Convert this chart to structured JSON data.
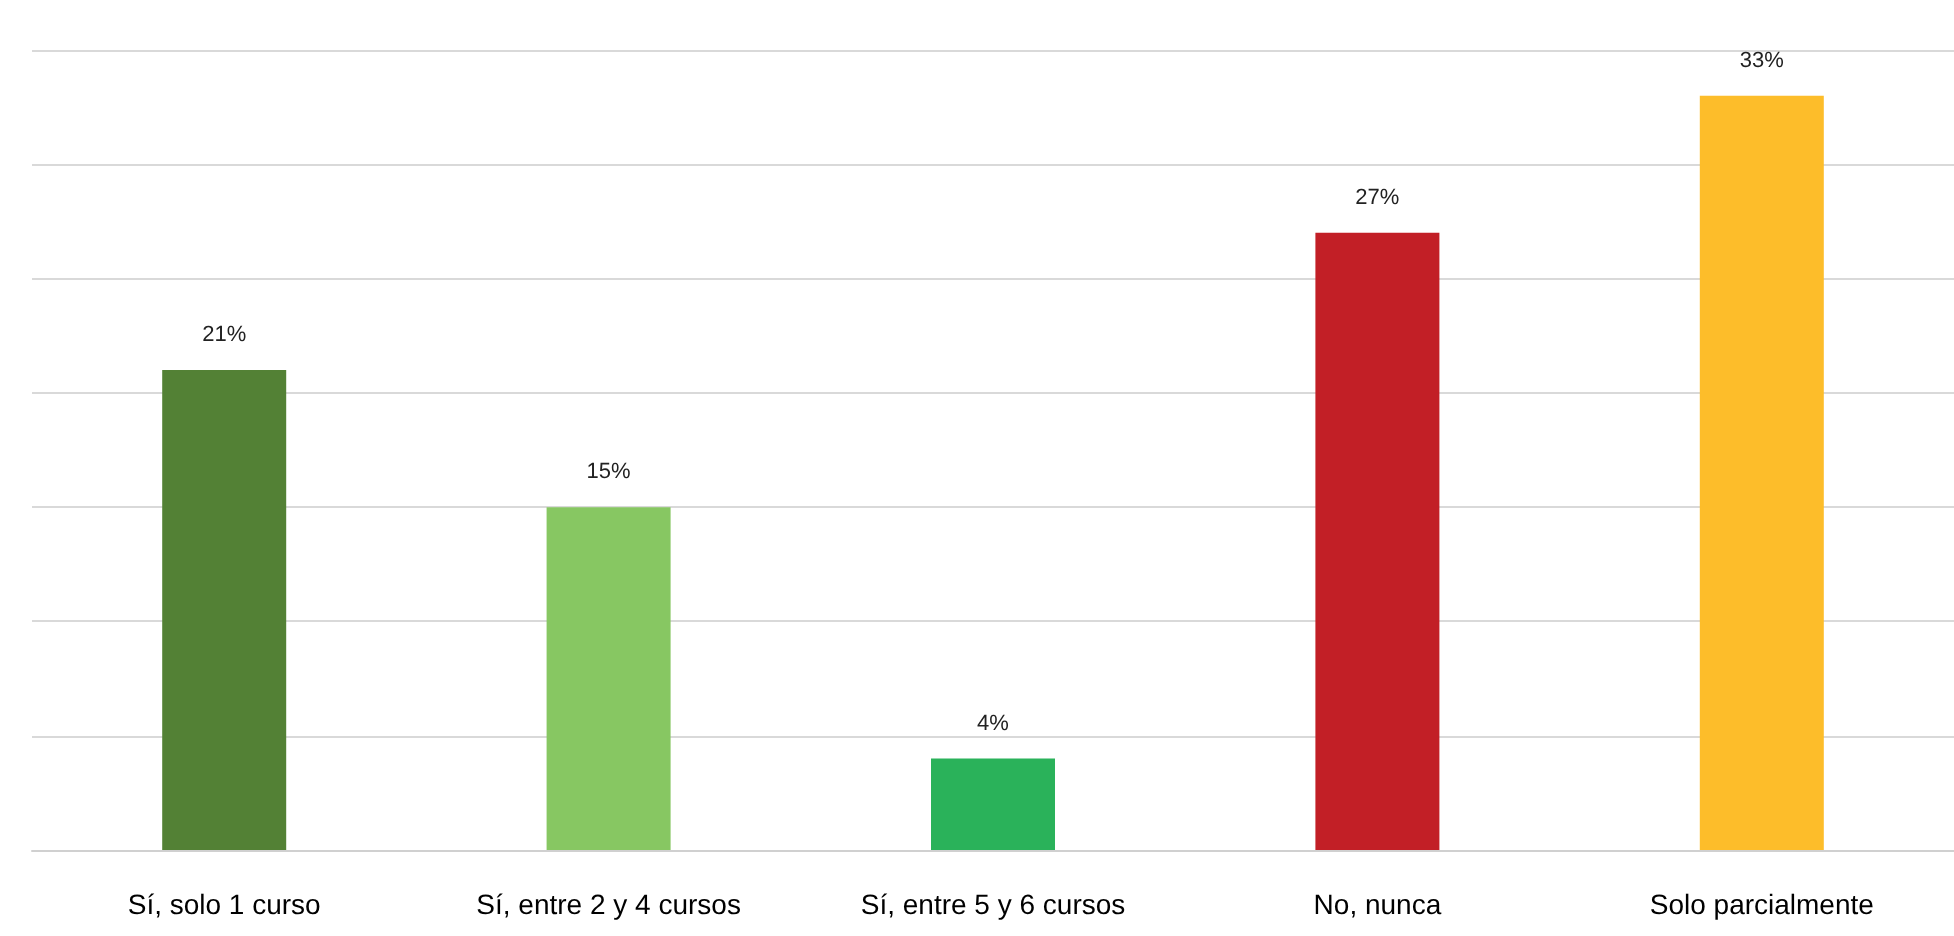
{
  "chart_data": {
    "type": "bar",
    "categories": [
      "Sí, solo 1 curso",
      "Sí, entre 2 y 4 cursos",
      "Sí, entre 5 y 6 cursos",
      "No, nunca",
      "Solo parcialmente"
    ],
    "values": [
      21,
      15,
      4,
      27,
      33
    ],
    "colors": [
      "#538135",
      "#87c762",
      "#2ab25a",
      "#c21f26",
      "#fdbd2a"
    ],
    "value_labels": [
      "21%",
      "15%",
      "4%",
      "27%",
      "33%"
    ],
    "ylim": [
      0,
      35
    ],
    "yticks": [
      {
        "value": 0,
        "label": null
      },
      {
        "value": 5,
        "label": null
      },
      {
        "value": 10,
        "label": null
      },
      {
        "value": 15,
        "label": null
      },
      {
        "value": 20,
        "label": null
      },
      {
        "value": 25,
        "label": null
      },
      {
        "value": 30,
        "label": null
      },
      {
        "value": 35,
        "label": null
      }
    ],
    "grid": "y",
    "tick_labels": "x"
  }
}
